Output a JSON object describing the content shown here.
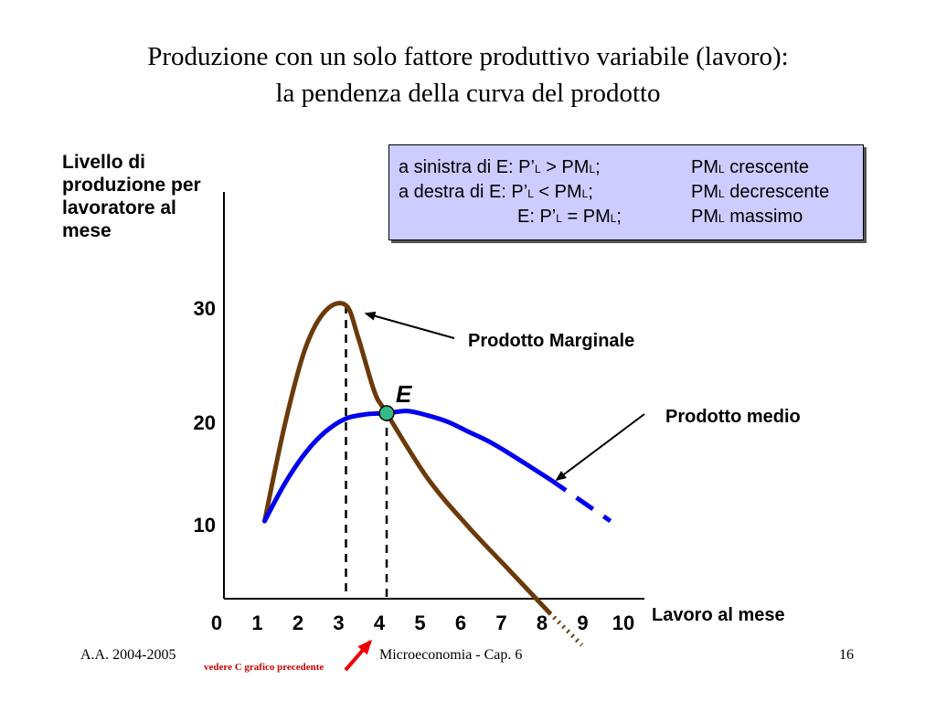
{
  "title": {
    "line1": "Produzione con un solo fattore produttivo variabile (lavoro):",
    "line2": "la pendenza della curva del prodotto"
  },
  "legend_box": {
    "row1": {
      "left": "a sinistra di E: P’",
      "sub1": "L",
      "mid": " > PM",
      "sub2": "L",
      "end": ";",
      "right_pre": "PM",
      "right_sub": "L",
      "right_post": " crescente"
    },
    "row2": {
      "left": "a destra di  E: P’",
      "sub1": "L",
      "mid": " < PM",
      "sub2": "L",
      "end": ";",
      "right_pre": "PM",
      "right_sub": "L",
      "right_post": " decrescente"
    },
    "row3": {
      "left": "E: P’",
      "sub1": "L",
      "mid": " = PM",
      "sub2": "L",
      "end": ";",
      "right_pre": "PM",
      "right_sub": "L",
      "right_post": "  massimo"
    },
    "bg_color": "#ccccff"
  },
  "footer": {
    "left": "A.A. 2004-2005",
    "center": "Microeconomia - Cap. 6",
    "page": "16",
    "note": "vedere C grafico precedente",
    "note_color": "#cc0000"
  },
  "chart_data": {
    "type": "line",
    "ylabel": "Livello di produzione per lavoratore al mese",
    "xlabel": "Lavoro al mese",
    "x_ticks": [
      "0",
      "1",
      "2",
      "3",
      "4",
      "5",
      "6",
      "7",
      "8",
      "9",
      "10"
    ],
    "y_ticks": [
      "10",
      "20",
      "30"
    ],
    "xlim": [
      0,
      10
    ],
    "series": [
      {
        "name": "Prodotto Marginale",
        "color": "#6b3a0a",
        "points": [
          [
            1,
            10
          ],
          [
            1.5,
            19
          ],
          [
            2,
            26
          ],
          [
            2.5,
            29.5
          ],
          [
            3,
            30
          ],
          [
            3.3,
            27
          ],
          [
            3.7,
            22
          ],
          [
            4,
            20
          ],
          [
            5,
            14
          ],
          [
            6,
            9.5
          ],
          [
            7,
            5.5
          ],
          [
            8,
            1.5
          ]
        ],
        "dotted_extension": [
          [
            8,
            1.5
          ],
          [
            8.8,
            -1.5
          ]
        ]
      },
      {
        "name": "Prodotto medio",
        "color": "#0000ee",
        "points": [
          [
            1,
            10
          ],
          [
            1.5,
            13.5
          ],
          [
            2,
            16.3
          ],
          [
            2.5,
            18.3
          ],
          [
            3,
            19.5
          ],
          [
            3.5,
            19.9
          ],
          [
            4,
            20
          ],
          [
            4.5,
            20.2
          ],
          [
            5,
            19.8
          ],
          [
            5.5,
            19.2
          ],
          [
            6,
            18.3
          ],
          [
            6.5,
            17.4
          ],
          [
            7,
            16.3
          ],
          [
            7.5,
            15.1
          ],
          [
            8,
            13.9
          ]
        ],
        "dashed_extension": [
          [
            8,
            13.9
          ],
          [
            9.5,
            10
          ]
        ]
      }
    ],
    "vertical_dashed_lines": [
      3,
      4
    ],
    "point_E": {
      "label": "E",
      "x": 4,
      "y": 20,
      "color": "#33bb88"
    },
    "annotations": [
      {
        "text": "Prodotto Marginale",
        "arrow_to": [
          3,
          30
        ]
      },
      {
        "text": "Prodotto medio",
        "arrow_to": [
          8,
          13.9
        ]
      }
    ]
  }
}
